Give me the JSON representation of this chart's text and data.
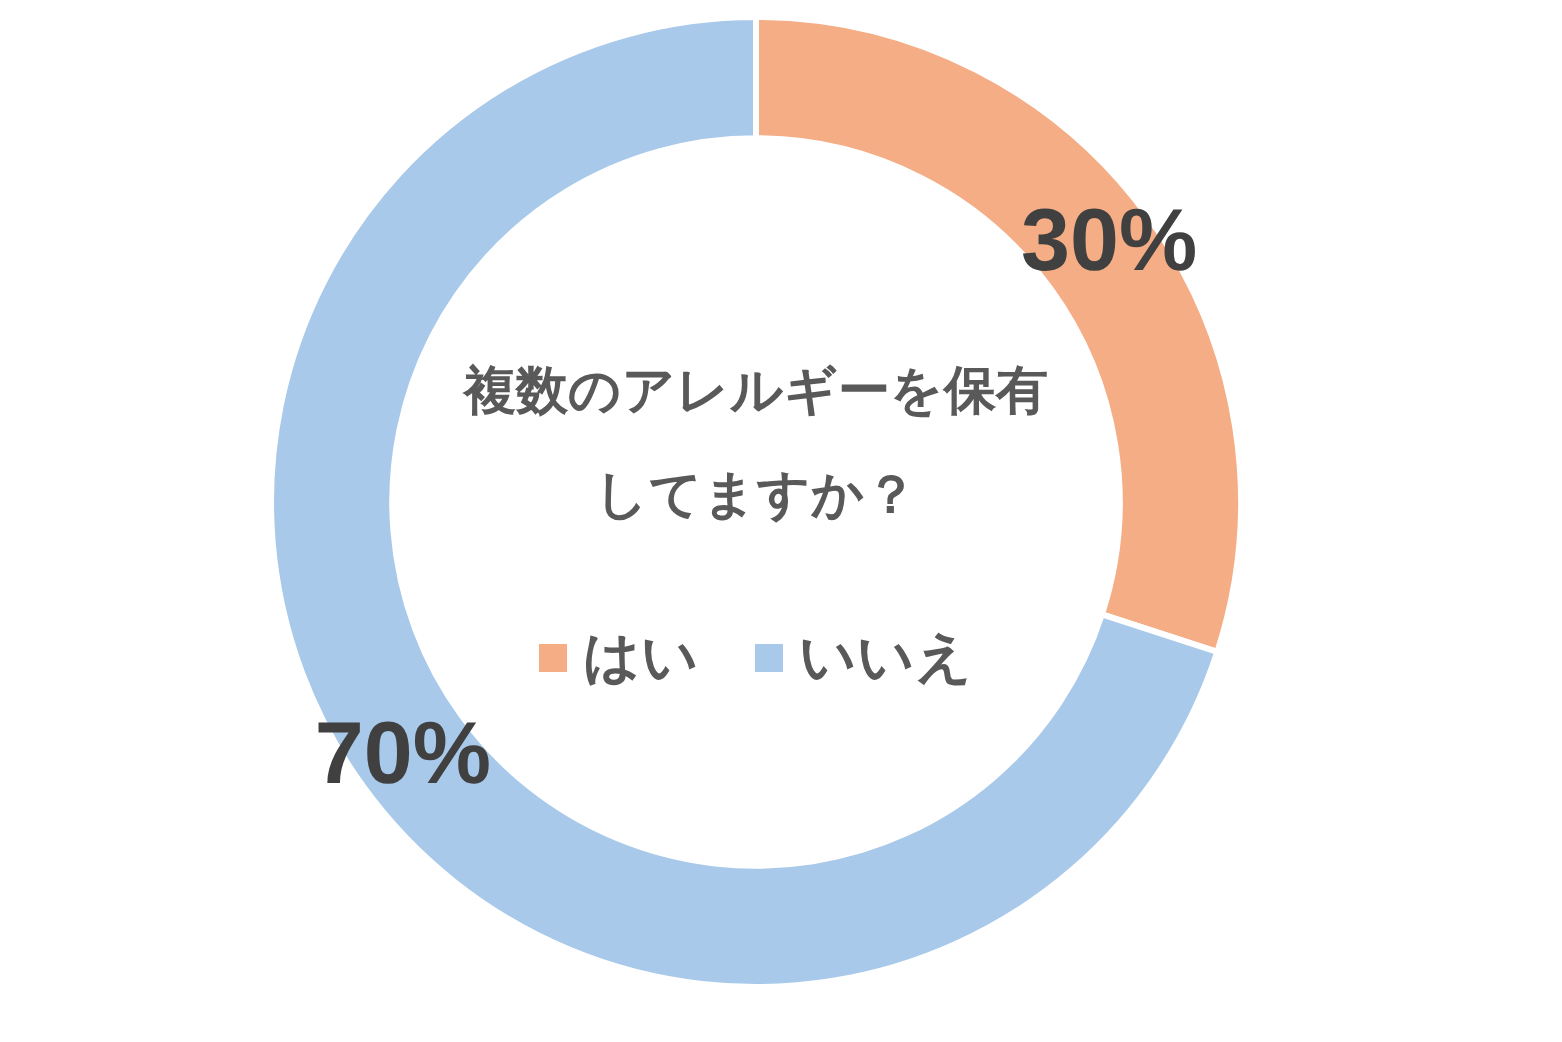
{
  "chart_data": {
    "type": "donut",
    "title": "複数のアレルギーを保有してますか？",
    "categories": [
      "はい",
      "いいえ"
    ],
    "values": [
      30,
      70
    ],
    "colors": [
      "#f4ad85",
      "#a8c9ea"
    ],
    "value_labels": [
      "30%",
      "70%"
    ],
    "legend": "center"
  }
}
